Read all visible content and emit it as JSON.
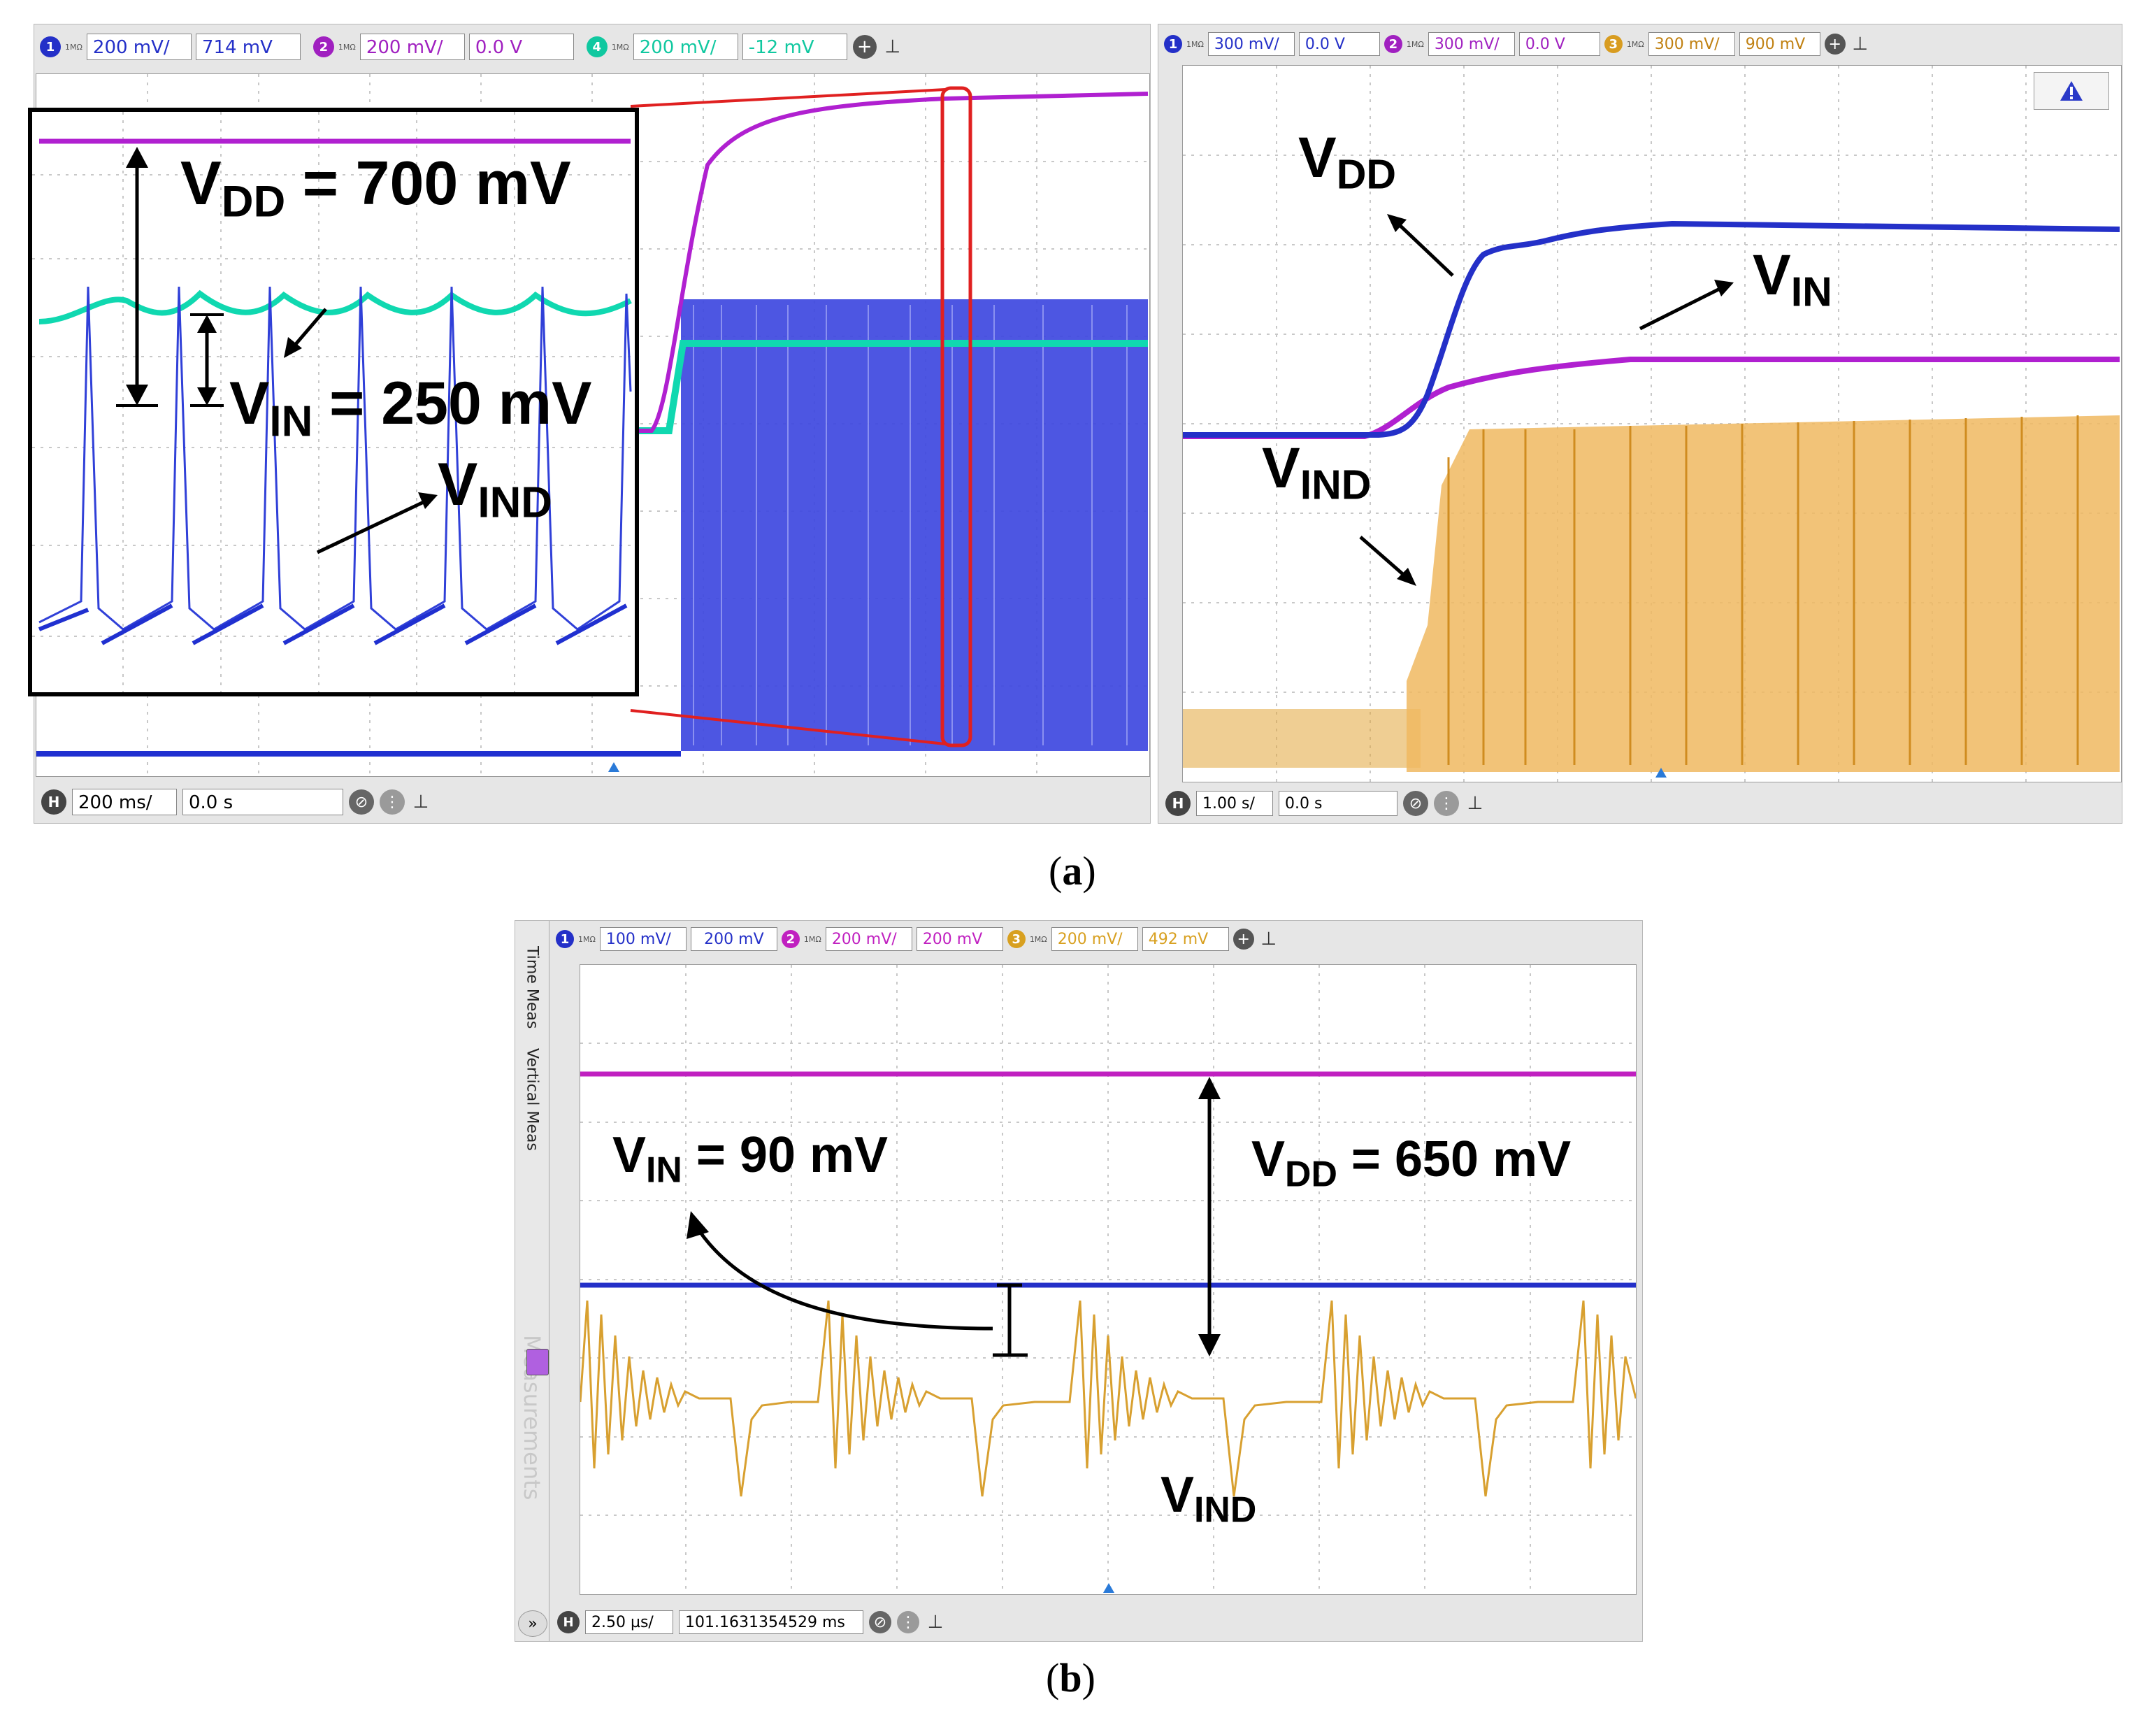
{
  "panel_a_left": {
    "channels": [
      {
        "num": "1",
        "imp": "1MΩ",
        "scale": "200 mV/",
        "offset": "714 mV",
        "color": "#2430c8"
      },
      {
        "num": "2",
        "imp": "1MΩ",
        "scale": "200 mV/",
        "offset": "0.0 V",
        "color": "#a020c0"
      },
      {
        "num": "4",
        "imp": "1MΩ",
        "scale": "200 mV/",
        "offset": "-12 mV",
        "color": "#10c8a0"
      }
    ],
    "add_icon": "plus-circle-icon",
    "pin_icon": "pin-icon",
    "timebase": {
      "badge": "H",
      "scale": "200 ms/",
      "delay": "0.0 s"
    },
    "labels": {
      "vdd_main": "V",
      "vdd_sub": "DD",
      "vdd_rest": " = 700 mV",
      "vin_main": "V",
      "vin_sub": "IN",
      "vin_rest": " = 250 mV",
      "vind_main": "V",
      "vind_sub": "IND"
    }
  },
  "panel_a_right": {
    "channels": [
      {
        "num": "1",
        "imp": "1MΩ",
        "scale": "300 mV/",
        "offset": "0.0 V",
        "color": "#2430c8"
      },
      {
        "num": "2",
        "imp": "1MΩ",
        "scale": "300 mV/",
        "offset": "0.0 V",
        "color": "#a020c0"
      },
      {
        "num": "3",
        "imp": "1MΩ",
        "scale": "300 mV/",
        "offset": "900 mV",
        "color": "#d89c20"
      }
    ],
    "timebase": {
      "badge": "H",
      "scale": "1.00 s/",
      "delay": "0.0 s"
    },
    "warning_icon": "warning-triangle-icon",
    "labels": {
      "vdd_main": "V",
      "vdd_sub": "DD",
      "vin_main": "V",
      "vin_sub": "IN",
      "vind_main": "V",
      "vind_sub": "IND"
    }
  },
  "panel_b": {
    "channels": [
      {
        "num": "1",
        "imp": "1MΩ",
        "scale": "100 mV/",
        "offset": "200 mV",
        "color": "#2430c8"
      },
      {
        "num": "2",
        "imp": "1MΩ",
        "scale": "200 mV/",
        "offset": "200 mV",
        "color": "#c020c0"
      },
      {
        "num": "3",
        "imp": "1MΩ",
        "scale": "200 mV/",
        "offset": "492 mV",
        "color": "#d8a020"
      }
    ],
    "side_tabs": [
      "Time Meas",
      "Vertical Meas"
    ],
    "watermark": "Measurements",
    "timebase": {
      "badge": "H",
      "scale": "2.50 µs/",
      "delay": "101.1631354529 ms"
    },
    "expand_icon": "double-chevron-right-icon",
    "labels": {
      "vin_main": "V",
      "vin_sub": "IN",
      "vin_rest": " = 90 mV",
      "vdd_main": "V",
      "vdd_sub": "DD",
      "vdd_rest": " = 650 mV",
      "vind_main": "V",
      "vind_sub": "IND"
    }
  },
  "captions": {
    "a": "(a)",
    "b": "(b)"
  },
  "a_letter": "a",
  "b_letter": "b"
}
